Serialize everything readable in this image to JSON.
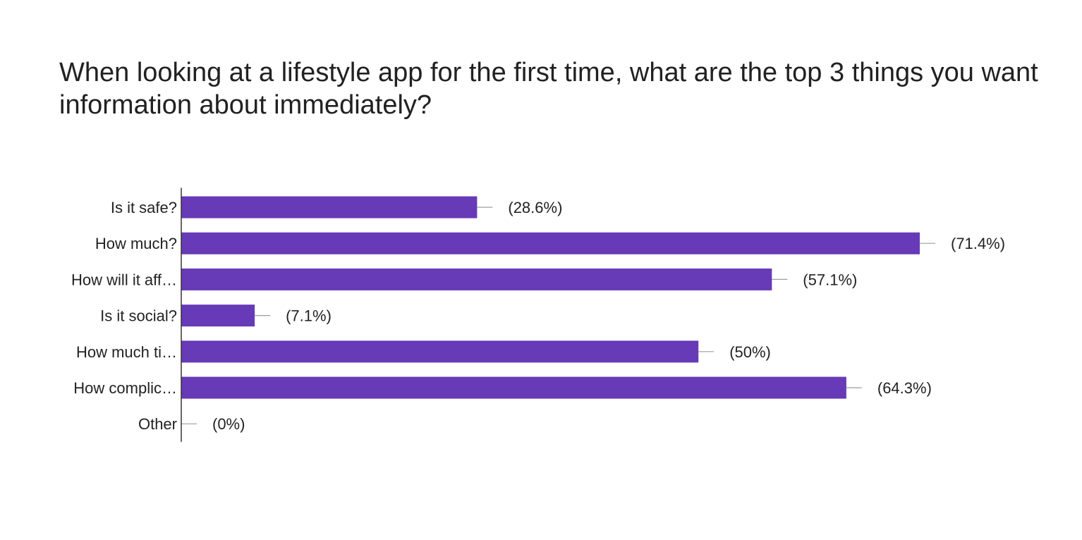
{
  "chart_data": {
    "type": "bar",
    "orientation": "horizontal",
    "title": "When looking at a lifestyle app for the first time, what are the top 3 things you want information about immediately?",
    "categories": [
      "Is it safe?",
      "How much?",
      "How will it aff…",
      "Is it social?",
      "How much ti…",
      "How complic…",
      "Other"
    ],
    "values": [
      28.6,
      71.4,
      57.1,
      7.1,
      50,
      64.3,
      0
    ],
    "value_labels": [
      "(28.6%)",
      "(71.4%)",
      "(57.1%)",
      "(7.1%)",
      "(50%)",
      "(64.3%)",
      "(0%)"
    ],
    "value_unit": "%",
    "xlim": [
      0,
      71.4
    ],
    "grid": false,
    "legend": "none",
    "bar_color": "#673ab7",
    "axis_color": "#333333",
    "leader_color": "#9e9e9e"
  }
}
